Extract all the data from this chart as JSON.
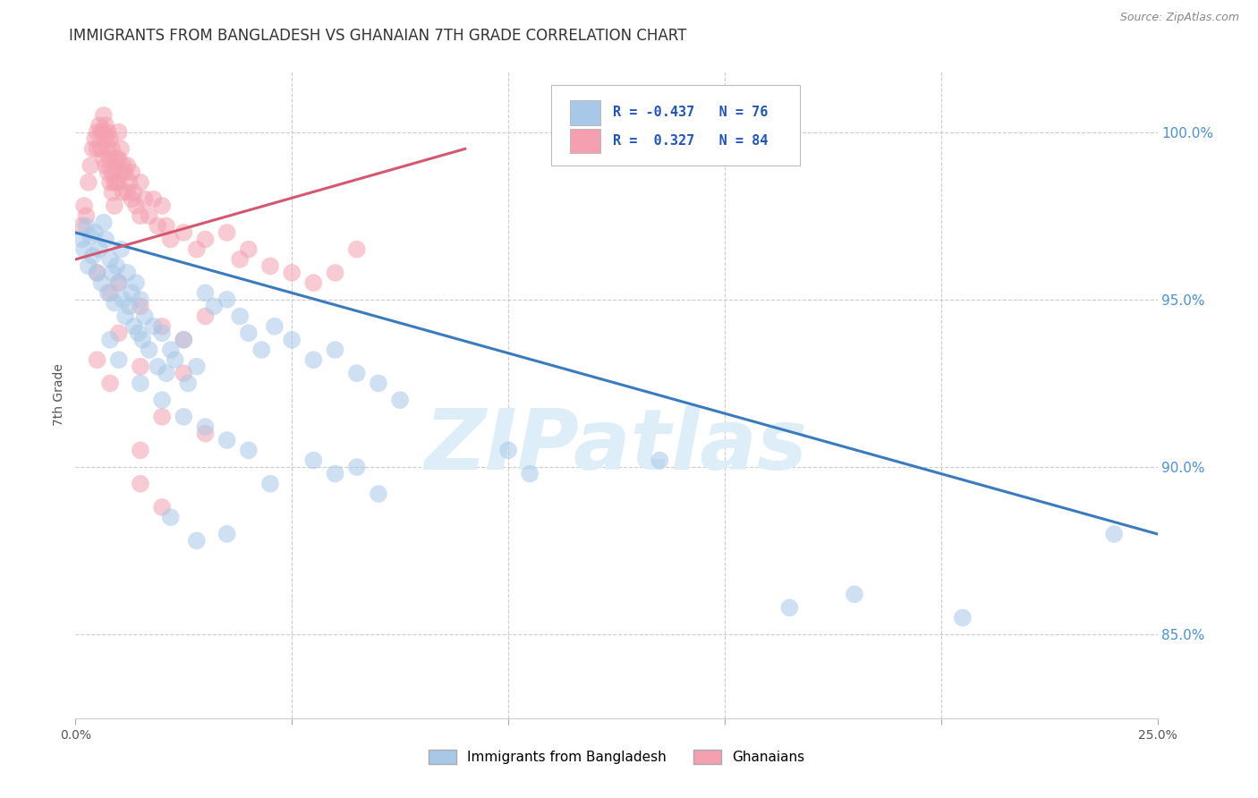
{
  "title": "IMMIGRANTS FROM BANGLADESH VS GHANAIAN 7TH GRADE CORRELATION CHART",
  "source": "Source: ZipAtlas.com",
  "ylabel": "7th Grade",
  "yticks": [
    85.0,
    90.0,
    95.0,
    100.0
  ],
  "ytick_labels": [
    "85.0%",
    "90.0%",
    "95.0%",
    "100.0%"
  ],
  "xlim": [
    0.0,
    25.0
  ],
  "ylim": [
    82.5,
    101.8
  ],
  "legend_blue_label": "Immigrants from Bangladesh",
  "legend_pink_label": "Ghanaians",
  "r_blue": -0.437,
  "n_blue": 76,
  "r_pink": 0.327,
  "n_pink": 84,
  "blue_color": "#a8c8e8",
  "pink_color": "#f4a0b0",
  "blue_line_color": "#3a7abf",
  "pink_line_color": "#d45870",
  "watermark": "ZIPatlas",
  "watermark_color": "#ddeef8",
  "title_fontsize": 12,
  "grid_color": "#cccccc",
  "background_color": "#ffffff",
  "blue_scatter": [
    [
      0.15,
      96.8
    ],
    [
      0.2,
      96.5
    ],
    [
      0.25,
      97.2
    ],
    [
      0.3,
      96.0
    ],
    [
      0.35,
      96.9
    ],
    [
      0.4,
      96.3
    ],
    [
      0.45,
      97.0
    ],
    [
      0.5,
      95.8
    ],
    [
      0.55,
      96.5
    ],
    [
      0.6,
      95.5
    ],
    [
      0.65,
      97.3
    ],
    [
      0.7,
      96.8
    ],
    [
      0.75,
      95.2
    ],
    [
      0.8,
      96.2
    ],
    [
      0.85,
      95.8
    ],
    [
      0.9,
      94.9
    ],
    [
      0.95,
      96.0
    ],
    [
      1.0,
      95.5
    ],
    [
      1.05,
      96.5
    ],
    [
      1.1,
      95.0
    ],
    [
      1.15,
      94.5
    ],
    [
      1.2,
      95.8
    ],
    [
      1.25,
      94.8
    ],
    [
      1.3,
      95.2
    ],
    [
      1.35,
      94.2
    ],
    [
      1.4,
      95.5
    ],
    [
      1.45,
      94.0
    ],
    [
      1.5,
      95.0
    ],
    [
      1.55,
      93.8
    ],
    [
      1.6,
      94.5
    ],
    [
      1.7,
      93.5
    ],
    [
      1.8,
      94.2
    ],
    [
      1.9,
      93.0
    ],
    [
      2.0,
      94.0
    ],
    [
      2.1,
      92.8
    ],
    [
      2.2,
      93.5
    ],
    [
      2.3,
      93.2
    ],
    [
      2.5,
      93.8
    ],
    [
      2.6,
      92.5
    ],
    [
      2.8,
      93.0
    ],
    [
      3.0,
      95.2
    ],
    [
      3.2,
      94.8
    ],
    [
      3.5,
      95.0
    ],
    [
      3.8,
      94.5
    ],
    [
      4.0,
      94.0
    ],
    [
      4.3,
      93.5
    ],
    [
      4.6,
      94.2
    ],
    [
      5.0,
      93.8
    ],
    [
      5.5,
      93.2
    ],
    [
      6.0,
      93.5
    ],
    [
      6.5,
      92.8
    ],
    [
      7.0,
      92.5
    ],
    [
      7.5,
      92.0
    ],
    [
      0.8,
      93.8
    ],
    [
      1.0,
      93.2
    ],
    [
      1.5,
      92.5
    ],
    [
      2.0,
      92.0
    ],
    [
      2.5,
      91.5
    ],
    [
      3.0,
      91.2
    ],
    [
      3.5,
      90.8
    ],
    [
      4.0,
      90.5
    ],
    [
      2.2,
      88.5
    ],
    [
      2.8,
      87.8
    ],
    [
      3.5,
      88.0
    ],
    [
      4.5,
      89.5
    ],
    [
      5.5,
      90.2
    ],
    [
      6.0,
      89.8
    ],
    [
      6.5,
      90.0
    ],
    [
      7.0,
      89.2
    ],
    [
      10.0,
      90.5
    ],
    [
      10.5,
      89.8
    ],
    [
      13.5,
      90.2
    ],
    [
      16.5,
      85.8
    ],
    [
      18.0,
      86.2
    ],
    [
      20.5,
      85.5
    ],
    [
      24.0,
      88.0
    ]
  ],
  "pink_scatter": [
    [
      0.15,
      97.2
    ],
    [
      0.2,
      97.8
    ],
    [
      0.25,
      97.5
    ],
    [
      0.3,
      98.5
    ],
    [
      0.35,
      99.0
    ],
    [
      0.4,
      99.5
    ],
    [
      0.45,
      99.8
    ],
    [
      0.5,
      99.5
    ],
    [
      0.5,
      100.0
    ],
    [
      0.55,
      100.2
    ],
    [
      0.6,
      100.0
    ],
    [
      0.6,
      99.5
    ],
    [
      0.65,
      100.5
    ],
    [
      0.65,
      100.0
    ],
    [
      0.65,
      99.2
    ],
    [
      0.7,
      100.2
    ],
    [
      0.7,
      99.8
    ],
    [
      0.7,
      99.0
    ],
    [
      0.75,
      100.0
    ],
    [
      0.75,
      99.5
    ],
    [
      0.75,
      98.8
    ],
    [
      0.8,
      99.8
    ],
    [
      0.8,
      99.2
    ],
    [
      0.8,
      98.5
    ],
    [
      0.85,
      99.5
    ],
    [
      0.85,
      98.8
    ],
    [
      0.85,
      98.2
    ],
    [
      0.9,
      99.0
    ],
    [
      0.9,
      98.5
    ],
    [
      0.9,
      97.8
    ],
    [
      0.95,
      99.2
    ],
    [
      0.95,
      98.5
    ],
    [
      1.0,
      100.0
    ],
    [
      1.0,
      99.2
    ],
    [
      1.0,
      98.5
    ],
    [
      1.05,
      99.5
    ],
    [
      1.05,
      98.8
    ],
    [
      1.1,
      99.0
    ],
    [
      1.1,
      98.2
    ],
    [
      1.15,
      98.8
    ],
    [
      1.2,
      99.0
    ],
    [
      1.2,
      98.2
    ],
    [
      1.25,
      98.5
    ],
    [
      1.3,
      98.8
    ],
    [
      1.3,
      98.0
    ],
    [
      1.35,
      98.2
    ],
    [
      1.4,
      97.8
    ],
    [
      1.5,
      98.5
    ],
    [
      1.5,
      97.5
    ],
    [
      1.6,
      98.0
    ],
    [
      1.7,
      97.5
    ],
    [
      1.8,
      98.0
    ],
    [
      1.9,
      97.2
    ],
    [
      2.0,
      97.8
    ],
    [
      2.1,
      97.2
    ],
    [
      2.2,
      96.8
    ],
    [
      2.5,
      97.0
    ],
    [
      2.8,
      96.5
    ],
    [
      3.0,
      96.8
    ],
    [
      3.5,
      97.0
    ],
    [
      3.8,
      96.2
    ],
    [
      4.0,
      96.5
    ],
    [
      4.5,
      96.0
    ],
    [
      5.0,
      95.8
    ],
    [
      5.5,
      95.5
    ],
    [
      6.0,
      95.8
    ],
    [
      6.5,
      96.5
    ],
    [
      0.5,
      95.8
    ],
    [
      0.8,
      95.2
    ],
    [
      1.0,
      95.5
    ],
    [
      1.5,
      94.8
    ],
    [
      2.0,
      94.2
    ],
    [
      2.5,
      93.8
    ],
    [
      3.0,
      94.5
    ],
    [
      0.5,
      93.2
    ],
    [
      1.0,
      94.0
    ],
    [
      0.8,
      92.5
    ],
    [
      1.5,
      93.0
    ],
    [
      2.5,
      92.8
    ],
    [
      2.0,
      91.5
    ],
    [
      1.5,
      90.5
    ],
    [
      3.0,
      91.0
    ],
    [
      1.5,
      89.5
    ],
    [
      2.0,
      88.8
    ]
  ],
  "blue_line_x": [
    0.0,
    25.0
  ],
  "blue_line_y": [
    97.0,
    88.0
  ],
  "pink_line_x": [
    0.0,
    9.0
  ],
  "pink_line_y": [
    96.2,
    99.5
  ]
}
